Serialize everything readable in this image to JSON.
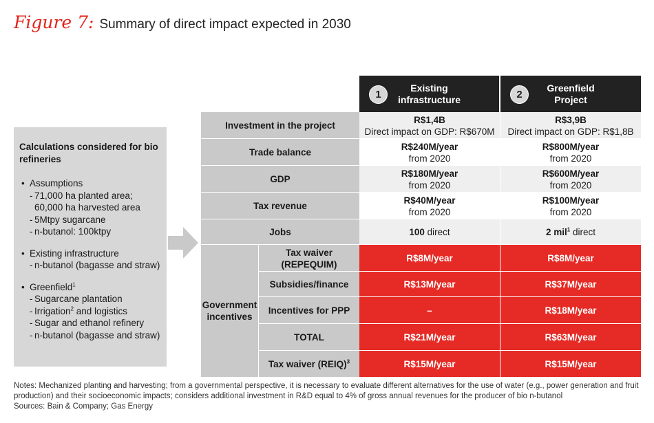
{
  "figure": {
    "label": "Figure 7:",
    "title": "Summary of direct impact expected in 2030"
  },
  "left_panel": {
    "heading": "Calculations considered for bio refineries",
    "assumptions": {
      "label": "Assumptions",
      "items": [
        "71,000 ha planted area;",
        "60,000 ha harvested area",
        "5Mtpy sugarcane",
        "n-butanol: 100ktpy"
      ]
    },
    "existing": {
      "label": "Existing infrastructure",
      "items": [
        "n-butanol (bagasse and straw)"
      ]
    },
    "greenfield": {
      "label": "Greenfield",
      "label_sup": "1",
      "item1": "Sugarcane plantation",
      "item2": "Irrigation",
      "item2_sup": "2",
      "item2_rest": " and logistics",
      "item3": "Sugar and ethanol refinery",
      "item4": "n-butanol (bagasse and straw)"
    }
  },
  "columns": [
    {
      "number": "1",
      "line1": "Existing",
      "line2": "infrastructure"
    },
    {
      "number": "2",
      "line1": "Greenfield",
      "line2": "Project"
    }
  ],
  "rows": {
    "investment": {
      "label": "Investment in the project",
      "c1_main": "R$1,4B",
      "c1_sub": "Direct impact on GDP: R$670M",
      "c2_main": "R$3,9B",
      "c2_sub": "Direct impact on GDP: R$1,8B"
    },
    "trade": {
      "label": "Trade balance",
      "c1_main": "R$240M/year",
      "c1_sub": "from 2020",
      "c2_main": "R$800M/year",
      "c2_sub": "from 2020"
    },
    "gdp": {
      "label": "GDP",
      "c1_main": "R$180M/year",
      "c1_sub": "from 2020",
      "c2_main": "R$600M/year",
      "c2_sub": "from 2020"
    },
    "tax": {
      "label": "Tax revenue",
      "c1_main": "R$40M/year",
      "c1_sub": "from 2020",
      "c2_main": "R$100M/year",
      "c2_sub": "from 2020"
    },
    "jobs": {
      "label": "Jobs",
      "c1_main": "100",
      "c1_rest": " direct",
      "c2_main": "2 mil",
      "c2_sup": "1",
      "c2_rest": " direct"
    }
  },
  "gov": {
    "label_line1": "Government",
    "label_line2": "incentives",
    "waiver": {
      "label_line1": "Tax waiver",
      "label_line2": "(REPEQUIM)",
      "c1": "R$8M/year",
      "c2": "R$8M/year"
    },
    "subsidies": {
      "label": "Subsidies/finance",
      "c1": "R$13M/year",
      "c2": "R$37M/year"
    },
    "ppp": {
      "label": "Incentives for PPP",
      "c1": "–",
      "c2": "R$18M/year"
    },
    "total": {
      "label": "TOTAL",
      "c1": "R$21M/year",
      "c2": "R$63M/year"
    },
    "reiq": {
      "label": "Tax waiver (REIQ)",
      "label_sup": "3",
      "c1": "R$15M/year",
      "c2": "R$15M/year"
    }
  },
  "notes": {
    "text": "Notes: Mechanized planting and harvesting; from a governmental perspective, it is necessary to evaluate different alternatives for the use of water (e.g., power generation and fruit production) and their socioeconomic impacts; considers additional investment in R&D equal to 4% of gross annual revenues for the producer of bio n-butanol",
    "sources": "Sources: Bain & Company; Gas Energy"
  },
  "colors": {
    "accent_red": "#e62a25",
    "header_dark": "#222222",
    "label_grey": "#c9c9c9",
    "panel_grey": "#d7d7d7",
    "title_red": "#e2231a"
  }
}
